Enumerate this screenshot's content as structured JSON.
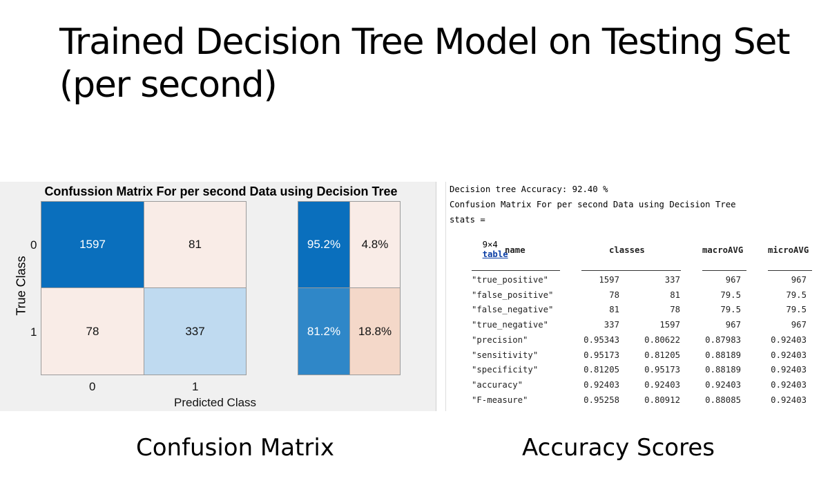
{
  "title": {
    "line1": "Trained Decision Tree Model on Testing Set",
    "line2": "(per second)"
  },
  "confusion_figure": {
    "title": "Confussion Matrix For per second Data using Decision Tree",
    "ylabel": "True Class",
    "xlabel": "Predicted Class",
    "row_labels": [
      "0",
      "1"
    ],
    "col_labels": [
      "0",
      "1"
    ],
    "matrix": [
      [
        "1597",
        "81"
      ],
      [
        "78",
        "337"
      ]
    ],
    "row_summary": [
      [
        "95.2%",
        "4.8%"
      ],
      [
        "81.2%",
        "18.8%"
      ]
    ],
    "colors": {
      "dark_blue": "#0a6fbd",
      "mid_blue": "#2f87c8",
      "light_blue": "#bfdaf0",
      "pale_pink": "#f9ece7",
      "pink": "#f4d8c9"
    }
  },
  "console": {
    "line1": "Decision tree Accuracy: 92.40 %",
    "line2": "Confusion Matrix For per second Data using Decision Tree",
    "line3": "stats =",
    "dims": "9×4",
    "table_link": "table",
    "headers": [
      "name",
      "classes",
      "macroAVG",
      "microAVG"
    ],
    "rows": [
      [
        "\"true_positive\"",
        "1597",
        "337",
        "967",
        "967"
      ],
      [
        "\"false_positive\"",
        "78",
        "81",
        "79.5",
        "79.5"
      ],
      [
        "\"false_negative\"",
        "81",
        "78",
        "79.5",
        "79.5"
      ],
      [
        "\"true_negative\"",
        "337",
        "1597",
        "967",
        "967"
      ],
      [
        "\"precision\"",
        "0.95343",
        "0.80622",
        "0.87983",
        "0.92403"
      ],
      [
        "\"sensitivity\"",
        "0.95173",
        "0.81205",
        "0.88189",
        "0.92403"
      ],
      [
        "\"specificity\"",
        "0.81205",
        "0.95173",
        "0.88189",
        "0.92403"
      ],
      [
        "\"accuracy\"",
        "0.92403",
        "0.92403",
        "0.92403",
        "0.92403"
      ],
      [
        "\"F-measure\"",
        "0.95258",
        "0.80912",
        "0.88085",
        "0.92403"
      ]
    ]
  },
  "captions": {
    "left": "Confusion Matrix",
    "right": "Accuracy Scores"
  }
}
